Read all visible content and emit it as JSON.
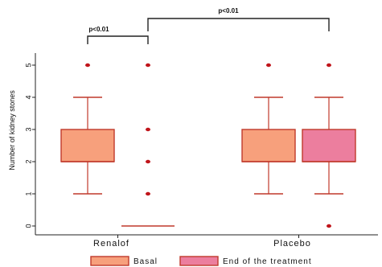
{
  "chart_data": {
    "type": "boxplot",
    "title": "",
    "xlabel": "",
    "ylabel": "Number of kidney stones",
    "ylim": [
      -0.2,
      5.4
    ],
    "yticks": [
      "0",
      "1",
      "2",
      "3",
      "4",
      "5"
    ],
    "categories": [
      "Renalof",
      "Placebo"
    ],
    "series": [
      {
        "name": "Basal",
        "color": "#f7a07c",
        "edge": "#c0392b",
        "boxes": [
          {
            "category": "Renalof",
            "q1": 2,
            "median": 2,
            "q3": 3,
            "whisker_low": 1,
            "whisker_high": 4,
            "outliers": [
              5
            ]
          },
          {
            "category": "Placebo",
            "q1": 2,
            "median": 2,
            "q3": 3,
            "whisker_low": 1,
            "whisker_high": 4,
            "outliers": [
              5
            ]
          }
        ]
      },
      {
        "name": "End of the treatment",
        "color": "#ec7e9e",
        "edge": "#c0392b",
        "boxes": [
          {
            "category": "Renalof",
            "q1": 0,
            "median": 0,
            "q3": 0,
            "whisker_low": 0,
            "whisker_high": 0,
            "outliers": [
              1,
              2,
              3,
              5
            ]
          },
          {
            "category": "Placebo",
            "q1": 2,
            "median": 2,
            "q3": 3,
            "whisker_low": 1,
            "whisker_high": 4,
            "outliers": [
              0,
              5
            ]
          }
        ]
      }
    ],
    "annotations": [
      {
        "text": "p<0.01",
        "from": "Renalof Basal",
        "to": "Renalof End of the treatment"
      },
      {
        "text": "p<0.01",
        "from": "Renalof End of the treatment",
        "to": "Placebo End of the treatment"
      }
    ],
    "legend_position": "bottom",
    "grid": false
  }
}
